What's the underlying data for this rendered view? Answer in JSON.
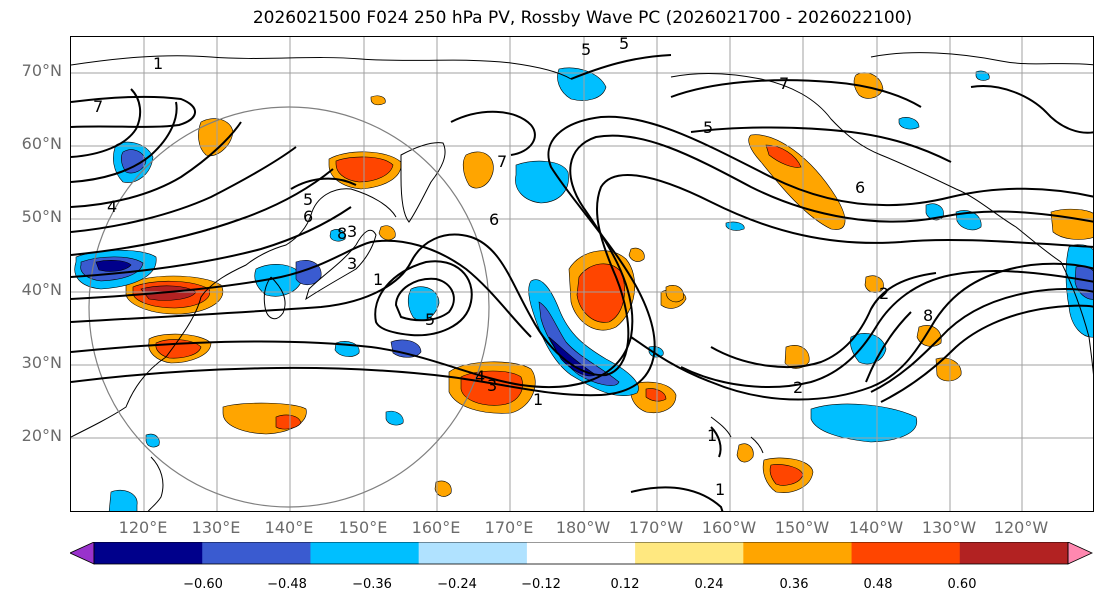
{
  "title": "2026021500 F024 250 hPa PV, Rossby Wave PC (2026021700 - 2026022100)",
  "latitude_labels": [
    "70°N",
    "60°N",
    "50°N",
    "40°N",
    "30°N",
    "20°N"
  ],
  "longitude_labels": [
    "120°E",
    "130°E",
    "140°E",
    "150°E",
    "160°E",
    "170°E",
    "180°W",
    "170°W",
    "160°W",
    "150°W",
    "140°W",
    "130°W",
    "120°W"
  ],
  "colorbar": {
    "ticks": [
      "−0.60",
      "−0.48",
      "−0.36",
      "−0.24",
      "−0.12",
      "0.12",
      "0.24",
      "0.36",
      "0.48",
      "0.60"
    ],
    "colors": [
      "#9932cc",
      "#00008b",
      "#3a5bd0",
      "#00bfff",
      "#b0e2ff",
      "#ffffff",
      "#ffe880",
      "#ffa500",
      "#ff4500",
      "#b22222",
      "#ff88b0"
    ]
  },
  "contour_labels": [
    "1",
    "7",
    "4",
    "3",
    "5",
    "6",
    "8",
    "3",
    "7",
    "5",
    "6",
    "1",
    "5",
    "4",
    "3",
    "1",
    "5",
    "2",
    "1",
    "1",
    "8",
    "7",
    "6",
    "2",
    "5"
  ],
  "map_colors": {
    "grid": "#a0a0a0",
    "coast": "#000000",
    "contour": "#000000",
    "circle": "#808080"
  }
}
